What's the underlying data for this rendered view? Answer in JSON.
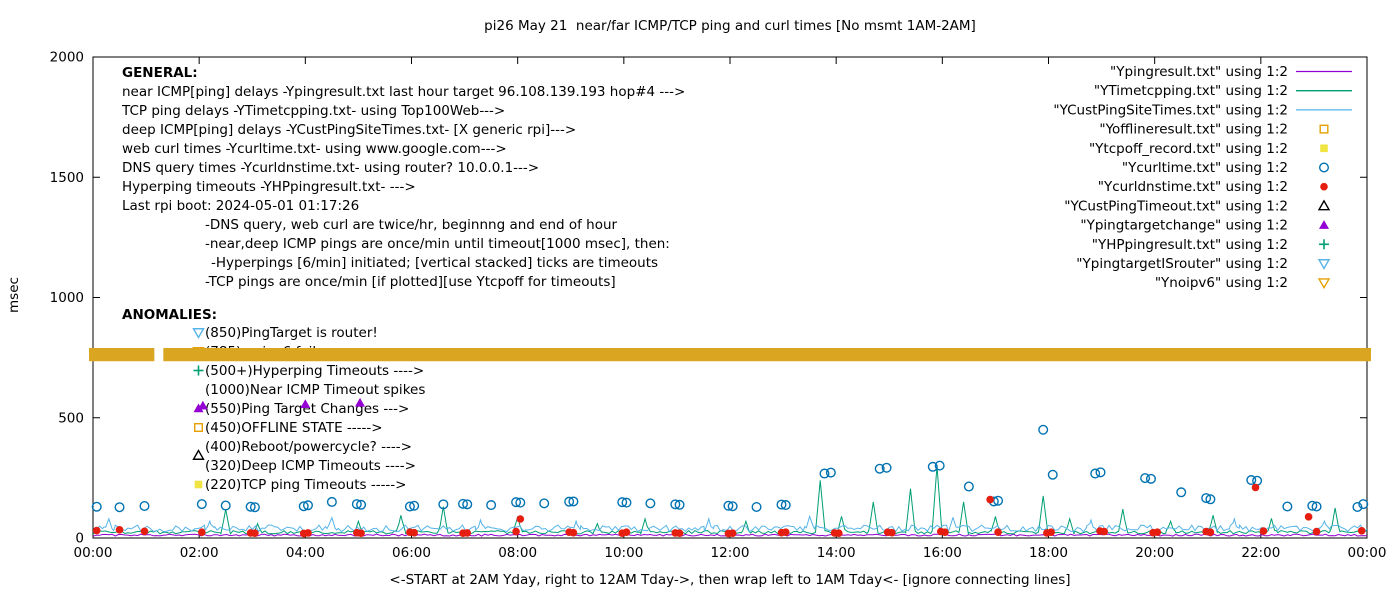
{
  "title": "pi26 May 21  near/far ICMP/TCP ping and curl times [No msmt 1AM-2AM]",
  "xlabel": "<-START at 2AM Yday, right to 12AM Tday->, then wrap left to 1AM Tday<- [ignore connecting lines]",
  "ylabel": "msec",
  "colors": {
    "purple": "#9400d3",
    "green": "#009e73",
    "cyan": "#56b4e9",
    "orange": "#e69f00",
    "yellow": "#f0e442",
    "blue": "#0072b2",
    "red": "#e51e10",
    "black": "#000000",
    "band": "#daa520"
  },
  "legend": [
    {
      "label": "\"Ypingresult.txt\" using 1:2",
      "marker": "line",
      "color": "#9400d3"
    },
    {
      "label": "\"YTimetcpping.txt\" using 1:2",
      "marker": "line",
      "color": "#009e73"
    },
    {
      "label": "\"YCustPingSiteTimes.txt\" using 1:2",
      "marker": "line",
      "color": "#56b4e9"
    },
    {
      "label": "\"Yofflineresult.txt\" using 1:2",
      "marker": "square-open",
      "color": "#e69f00"
    },
    {
      "label": "\"Ytcpoff_record.txt\" using 1:2",
      "marker": "square-filled",
      "color": "#f0e442"
    },
    {
      "label": "\"Ycurltime.txt\" using 1:2",
      "marker": "circle-open",
      "color": "#0072b2"
    },
    {
      "label": "\"Ycurldnstime.txt\" using 1:2",
      "marker": "circle-filled",
      "color": "#e51e10"
    },
    {
      "label": "\"YCustPingTimeout.txt\" using 1:2",
      "marker": "triangle-up-open",
      "color": "#000000"
    },
    {
      "label": "\"Ypingtargetchange\" using 1:2",
      "marker": "triangle-up-filled",
      "color": "#9400d3"
    },
    {
      "label": "\"YHPpingresult.txt\" using 1:2",
      "marker": "plus",
      "color": "#009e73"
    },
    {
      "label": "\"YpingtargetISrouter\" using 1:2",
      "marker": "triangle-down-open",
      "color": "#56b4e9"
    },
    {
      "label": "\"Ynoipv6\" using 1:2",
      "marker": "triangle-down-open",
      "color": "#e69f00"
    }
  ],
  "annotations": {
    "general": {
      "header": "GENERAL:",
      "lines": [
        {
          "indent": 0,
          "text": "near ICMP[ping] delays -Ypingresult.txt last hour target 96.108.139.193 hop#4 --->"
        },
        {
          "indent": 0,
          "text": "TCP ping delays -YTimetcpping.txt- using Top100Web--->"
        },
        {
          "indent": 0,
          "text": "deep ICMP[ping] delays -YCustPingSiteTimes.txt- [X generic rpi]--->"
        },
        {
          "indent": 0,
          "text": "web curl times -Ycurltime.txt- using www.google.com--->"
        },
        {
          "indent": 0,
          "text": "DNS query times -Ycurldnstime.txt- using router? 10.0.0.1--->"
        },
        {
          "indent": 0,
          "text": "Hyperping timeouts -YHPpingresult.txt- --->"
        },
        {
          "indent": 0,
          "text": "Last rpi boot: 2024-05-01 01:17:26"
        },
        {
          "indent": 1,
          "text": "-DNS query, web curl are twice/hr, beginnng and end of hour"
        },
        {
          "indent": 1,
          "text": "-near,deep ICMP pings are once/min until timeout[1000 msec], then:"
        },
        {
          "indent": 2,
          "text": "-Hyperpings [6/min] initiated; [vertical stacked] ticks are timeouts"
        },
        {
          "indent": 1,
          "text": "-TCP pings are once/min [if plotted][use Ytcpoff for timeouts]"
        }
      ]
    },
    "anomalies": {
      "header": "ANOMALIES:",
      "items": [
        {
          "marker": "triangle-down-open",
          "color": "#56b4e9",
          "text": "(850)PingTarget is router!"
        },
        {
          "marker": "triangle-down-open",
          "color": "#e69f00",
          "text": "(785)no ipv6 failures ---->"
        },
        {
          "marker": "plus",
          "color": "#009e73",
          "text": "(500+)Hyperping Timeouts ---->"
        },
        {
          "marker": "none",
          "color": "#000000",
          "text": "(1000)Near ICMP Timeout spikes"
        },
        {
          "marker": "triangle-up-filled",
          "color": "#9400d3",
          "text": "(550)Ping Target Changes --->"
        },
        {
          "marker": "square-open",
          "color": "#e69f00",
          "text": "(450)OFFLINE STATE ----->"
        },
        {
          "marker": "none",
          "color": "#000000",
          "text": "(400)Reboot/powercycle? ---->"
        },
        {
          "marker": "triangle-up-open",
          "color": "#000000",
          "marker_dy": -10,
          "text": "(320)Deep ICMP Timeouts ---->"
        },
        {
          "marker": "square-filled",
          "color": "#f0e442",
          "text": "(220)TCP ping Timeouts ----->"
        }
      ]
    }
  },
  "chart_data": {
    "type": "line",
    "title": "pi26 May 21  near/far ICMP/TCP ping and curl times [No msmt 1AM-2AM]",
    "xlabel": "<-START at 2AM Yday, right to 12AM Tday->, then wrap left to 1AM Tday<- [ignore connecting lines]",
    "ylabel": "msec",
    "ylim": [
      0,
      2000
    ],
    "xlim_hours": [
      0,
      24
    ],
    "x_ticks": [
      "00:00",
      "02:00",
      "04:00",
      "06:00",
      "08:00",
      "10:00",
      "12:00",
      "14:00",
      "16:00",
      "18:00",
      "20:00",
      "22:00",
      "00:00"
    ],
    "y_ticks": [
      0,
      500,
      1000,
      1500,
      2000
    ],
    "grid": false,
    "legend_position": "top-right",
    "no_measurement_gap_hours": [
      1,
      2
    ],
    "series": [
      {
        "name": "Ypingresult",
        "type": "line",
        "color": "#9400d3",
        "baseline": 12,
        "noise": 4,
        "spikes": []
      },
      {
        "name": "YTimetcpping",
        "type": "line",
        "color": "#009e73",
        "baseline": 24,
        "noise": 7,
        "spikes": [
          [
            2.5,
            120
          ],
          [
            3.1,
            60
          ],
          [
            5.0,
            70
          ],
          [
            5.8,
            95
          ],
          [
            6.6,
            130
          ],
          [
            8.0,
            90
          ],
          [
            9.5,
            60
          ],
          [
            10.4,
            80
          ],
          [
            12.3,
            70
          ],
          [
            13.7,
            240
          ],
          [
            14.1,
            90
          ],
          [
            14.7,
            150
          ],
          [
            15.4,
            205
          ],
          [
            15.9,
            300
          ],
          [
            16.4,
            150
          ],
          [
            17.0,
            90
          ],
          [
            17.9,
            175
          ],
          [
            18.4,
            80
          ],
          [
            19.4,
            120
          ],
          [
            20.3,
            70
          ],
          [
            21.1,
            95
          ],
          [
            22.2,
            80
          ],
          [
            23.4,
            125
          ]
        ]
      },
      {
        "name": "YCustPingSiteTimes",
        "type": "line",
        "color": "#56b4e9",
        "baseline": 40,
        "noise": 14,
        "spikes": [
          [
            0.3,
            80
          ],
          [
            2.2,
            70
          ],
          [
            4.5,
            85
          ],
          [
            7.3,
            75
          ],
          [
            9.1,
            70
          ],
          [
            11.6,
            80
          ],
          [
            13.5,
            90
          ],
          [
            16.2,
            85
          ],
          [
            18.8,
            75
          ],
          [
            21.5,
            80
          ],
          [
            23.2,
            70
          ]
        ]
      },
      {
        "name": "Ycurltime",
        "type": "points",
        "marker": "circle-open",
        "color": "#0072b2",
        "points": [
          [
            0.07,
            130
          ],
          [
            0.5,
            128
          ],
          [
            0.97,
            133
          ],
          [
            2.05,
            141
          ],
          [
            2.5,
            135
          ],
          [
            2.97,
            130
          ],
          [
            3.05,
            128
          ],
          [
            3.97,
            132
          ],
          [
            4.05,
            136
          ],
          [
            4.5,
            150
          ],
          [
            4.97,
            141
          ],
          [
            5.05,
            138
          ],
          [
            5.97,
            131
          ],
          [
            6.05,
            134
          ],
          [
            6.6,
            140
          ],
          [
            6.97,
            142
          ],
          [
            7.05,
            140
          ],
          [
            7.5,
            137
          ],
          [
            7.97,
            149
          ],
          [
            8.05,
            147
          ],
          [
            8.5,
            144
          ],
          [
            8.97,
            151
          ],
          [
            9.05,
            152
          ],
          [
            9.97,
            149
          ],
          [
            10.05,
            147
          ],
          [
            10.5,
            144
          ],
          [
            10.97,
            140
          ],
          [
            11.05,
            138
          ],
          [
            11.97,
            134
          ],
          [
            12.05,
            132
          ],
          [
            12.5,
            129
          ],
          [
            12.97,
            139
          ],
          [
            13.05,
            137
          ],
          [
            13.78,
            268
          ],
          [
            13.9,
            272
          ],
          [
            14.82,
            288
          ],
          [
            14.95,
            292
          ],
          [
            15.82,
            296
          ],
          [
            15.95,
            301
          ],
          [
            16.5,
            214
          ],
          [
            16.97,
            152
          ],
          [
            17.05,
            155
          ],
          [
            17.9,
            450
          ],
          [
            18.08,
            263
          ],
          [
            18.88,
            268
          ],
          [
            18.98,
            273
          ],
          [
            19.82,
            249
          ],
          [
            19.93,
            246
          ],
          [
            20.5,
            190
          ],
          [
            20.97,
            166
          ],
          [
            21.05,
            161
          ],
          [
            21.82,
            241
          ],
          [
            21.93,
            238
          ],
          [
            22.5,
            131
          ],
          [
            22.97,
            134
          ],
          [
            23.05,
            131
          ],
          [
            23.82,
            129
          ],
          [
            23.93,
            141
          ]
        ]
      },
      {
        "name": "Ycurldnstime",
        "type": "points",
        "marker": "circle-filled",
        "color": "#e51e10",
        "points": [
          [
            0.07,
            31
          ],
          [
            0.5,
            34
          ],
          [
            0.97,
            28
          ],
          [
            2.05,
            24
          ],
          [
            2.97,
            21
          ],
          [
            3.05,
            20
          ],
          [
            3.97,
            19
          ],
          [
            4.05,
            21
          ],
          [
            4.97,
            22
          ],
          [
            5.05,
            20
          ],
          [
            5.97,
            24
          ],
          [
            6.05,
            22
          ],
          [
            6.97,
            20
          ],
          [
            7.05,
            21
          ],
          [
            7.97,
            27
          ],
          [
            8.05,
            79
          ],
          [
            8.97,
            24
          ],
          [
            9.05,
            22
          ],
          [
            9.97,
            20
          ],
          [
            10.05,
            24
          ],
          [
            10.97,
            21
          ],
          [
            11.05,
            20
          ],
          [
            11.97,
            19
          ],
          [
            12.05,
            20
          ],
          [
            12.97,
            22
          ],
          [
            13.05,
            24
          ],
          [
            13.97,
            21
          ],
          [
            14.05,
            20
          ],
          [
            14.97,
            24
          ],
          [
            15.05,
            22
          ],
          [
            15.97,
            27
          ],
          [
            16.05,
            24
          ],
          [
            16.9,
            160
          ],
          [
            17.05,
            24
          ],
          [
            17.97,
            21
          ],
          [
            18.05,
            24
          ],
          [
            18.97,
            29
          ],
          [
            19.05,
            27
          ],
          [
            19.97,
            22
          ],
          [
            20.05,
            24
          ],
          [
            20.97,
            27
          ],
          [
            21.05,
            24
          ],
          [
            21.9,
            210
          ],
          [
            22.05,
            29
          ],
          [
            22.9,
            88
          ],
          [
            23.05,
            27
          ],
          [
            23.9,
            30
          ]
        ]
      },
      {
        "name": "Ypingtargetchange",
        "type": "points",
        "marker": "triangle-up-filled",
        "color": "#9400d3",
        "points": [
          [
            2.07,
            550
          ],
          [
            4.0,
            556
          ],
          [
            5.03,
            562
          ]
        ]
      },
      {
        "name": "Ynoipv6",
        "type": "band",
        "color": "#daa520",
        "y_range": [
          735,
          790
        ],
        "segments": [
          [
            0,
            1.08
          ],
          [
            1.4,
            24
          ]
        ]
      }
    ]
  }
}
